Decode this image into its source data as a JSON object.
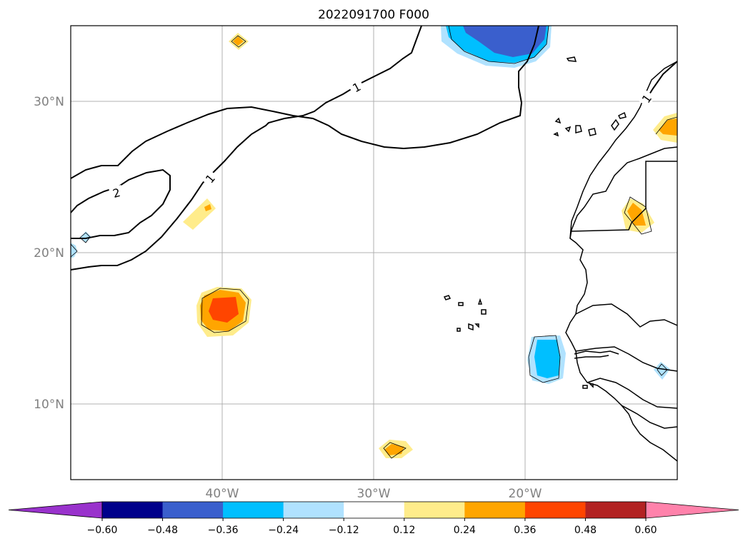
{
  "title": "2022091700 F000",
  "map": {
    "lat_labels": [
      "30°N",
      "20°N",
      "10°N"
    ],
    "lon_labels": [
      "40°W",
      "30°W",
      "20°W"
    ],
    "contour_labels": [
      "1",
      "2",
      "1",
      "1"
    ]
  },
  "colorbar": {
    "ticks": [
      "−0.60",
      "−0.48",
      "−0.36",
      "−0.24",
      "−0.12",
      "0.12",
      "0.24",
      "0.36",
      "0.48",
      "0.60"
    ],
    "colors": [
      "#9932cc",
      "#00008b",
      "#3a5fcd",
      "#00bfff",
      "#b0e2ff",
      "#ffffff",
      "#ffec8b",
      "#ffa500",
      "#ff4500",
      "#b22222",
      "#ff82ab"
    ]
  },
  "colors": {
    "grid": "#b0b0b0",
    "coast": "#000000",
    "tick_text": "#808080"
  }
}
